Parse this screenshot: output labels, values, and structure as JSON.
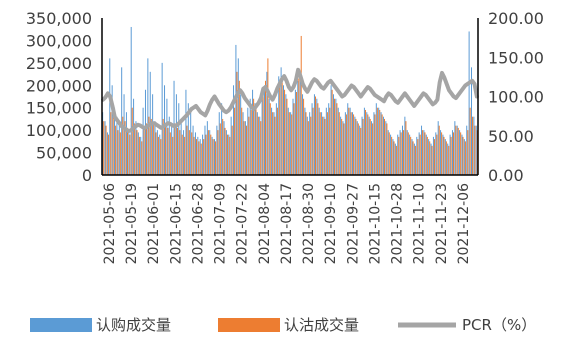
{
  "chart_data": {
    "type": "bar",
    "x_tick_labels": [
      "2021-05-06",
      "2021-05-19",
      "2021-06-01",
      "2021-06-15",
      "2021-06-28",
      "2021-07-09",
      "2021-07-22",
      "2021-08-04",
      "2021-08-17",
      "2021-08-30",
      "2021-09-10",
      "2021-09-27",
      "2021-10-15",
      "2021-10-28",
      "2021-11-10",
      "2021-11-23",
      "2021-12-06"
    ],
    "y_left": {
      "ticks": [
        "350,000",
        "300,000",
        "250,000",
        "200,000",
        "150,000",
        "100,000",
        "50,000",
        "0"
      ],
      "lim": [
        0,
        350000
      ]
    },
    "y_right": {
      "ticks": [
        "200.00",
        "150.00",
        "100.00",
        "50.00",
        "0.00"
      ],
      "lim": [
        0,
        200
      ]
    },
    "series": [
      {
        "name": "认购成交量",
        "kind": "bar",
        "axis": "left",
        "color": "#5B9BD5",
        "values": [
          140000,
          120000,
          95000,
          260000,
          200000,
          150000,
          130000,
          110000,
          240000,
          180000,
          140000,
          100000,
          330000,
          170000,
          120000,
          95000,
          85000,
          150000,
          190000,
          260000,
          230000,
          180000,
          120000,
          100000,
          90000,
          250000,
          200000,
          170000,
          130000,
          110000,
          210000,
          180000,
          160000,
          120000,
          100000,
          190000,
          160000,
          140000,
          110000,
          95000,
          85000,
          80000,
          90000,
          110000,
          120000,
          100000,
          85000,
          80000,
          110000,
          140000,
          160000,
          120000,
          100000,
          90000,
          130000,
          200000,
          290000,
          260000,
          180000,
          140000,
          120000,
          150000,
          170000,
          190000,
          160000,
          140000,
          130000,
          180000,
          200000,
          230000,
          170000,
          150000,
          140000,
          160000,
          220000,
          240000,
          200000,
          180000,
          150000,
          140000,
          170000,
          190000,
          210000,
          230000,
          180000,
          150000,
          130000,
          140000,
          160000,
          180000,
          170000,
          150000,
          140000,
          130000,
          150000,
          160000,
          200000,
          180000,
          170000,
          150000,
          130000,
          120000,
          140000,
          160000,
          150000,
          140000,
          130000,
          120000,
          110000,
          130000,
          150000,
          140000,
          130000,
          120000,
          140000,
          160000,
          150000,
          140000,
          130000,
          120000,
          100000,
          90000,
          80000,
          70000,
          90000,
          100000,
          110000,
          130000,
          100000,
          90000,
          80000,
          70000,
          85000,
          95000,
          110000,
          100000,
          90000,
          80000,
          70000,
          85000,
          95000,
          120000,
          100000,
          90000,
          80000,
          70000,
          90000,
          100000,
          120000,
          110000,
          100000,
          90000,
          80000,
          110000,
          320000,
          240000,
          130000,
          110000
        ],
        "pcr_values": []
      },
      {
        "name": "认沽成交量",
        "kind": "bar",
        "axis": "left",
        "color": "#ED7D31",
        "values": [
          120000,
          110000,
          90000,
          140000,
          130000,
          110000,
          100000,
          95000,
          130000,
          120000,
          105000,
          90000,
          150000,
          115000,
          100000,
          85000,
          75000,
          105000,
          115000,
          130000,
          125000,
          115000,
          95000,
          85000,
          80000,
          125000,
          115000,
          105000,
          95000,
          85000,
          115000,
          105000,
          100000,
          90000,
          85000,
          110000,
          100000,
          95000,
          85000,
          80000,
          75000,
          70000,
          80000,
          90000,
          100000,
          90000,
          80000,
          75000,
          100000,
          115000,
          125000,
          105000,
          90000,
          85000,
          110000,
          150000,
          230000,
          210000,
          150000,
          120000,
          110000,
          130000,
          145000,
          170000,
          150000,
          130000,
          120000,
          180000,
          210000,
          260000,
          160000,
          140000,
          130000,
          150000,
          200000,
          220000,
          190000,
          170000,
          140000,
          135000,
          160000,
          185000,
          215000,
          310000,
          170000,
          140000,
          120000,
          130000,
          150000,
          175000,
          160000,
          140000,
          130000,
          125000,
          140000,
          150000,
          190000,
          170000,
          160000,
          140000,
          125000,
          115000,
          135000,
          150000,
          140000,
          135000,
          125000,
          115000,
          105000,
          125000,
          145000,
          135000,
          125000,
          115000,
          135000,
          150000,
          145000,
          135000,
          125000,
          115000,
          95000,
          85000,
          75000,
          65000,
          85000,
          95000,
          100000,
          120000,
          95000,
          85000,
          75000,
          65000,
          80000,
          90000,
          100000,
          95000,
          85000,
          75000,
          65000,
          80000,
          90000,
          110000,
          95000,
          85000,
          75000,
          65000,
          85000,
          95000,
          110000,
          105000,
          95000,
          85000,
          75000,
          100000,
          150000,
          130000,
          110000,
          100000
        ]
      },
      {
        "name": "PCR（%）",
        "kind": "line",
        "axis": "right",
        "color": "#A5A5A5",
        "values": [
          96,
          99,
          104,
          100,
          88,
          74,
          70,
          66,
          62,
          60,
          58,
          56,
          57,
          60,
          62,
          64,
          63,
          61,
          60,
          62,
          64,
          66,
          66,
          64,
          62,
          60,
          62,
          64,
          66,
          65,
          63,
          62,
          64,
          67,
          70,
          73,
          76,
          80,
          84,
          86,
          88,
          84,
          80,
          78,
          76,
          82,
          90,
          96,
          100,
          95,
          90,
          86,
          82,
          80,
          82,
          86,
          92,
          98,
          104,
          108,
          104,
          98,
          94,
          90,
          86,
          84,
          88,
          92,
          98,
          110,
          112,
          106,
          100,
          96,
          102,
          110,
          116,
          122,
          126,
          120,
          112,
          108,
          112,
          120,
          134,
          126,
          116,
          110,
          106,
          112,
          118,
          122,
          120,
          116,
          112,
          110,
          114,
          118,
          120,
          116,
          112,
          108,
          104,
          100,
          102,
          106,
          110,
          114,
          112,
          108,
          104,
          100,
          104,
          108,
          112,
          110,
          106,
          102,
          100,
          98,
          96,
          94,
          100,
          104,
          102,
          98,
          94,
          92,
          96,
          100,
          104,
          100,
          96,
          92,
          88,
          92,
          96,
          100,
          104,
          102,
          98,
          94,
          90,
          92,
          96,
          118,
          130,
          124,
          116,
          108,
          104,
          100,
          98,
          102,
          106,
          110,
          114,
          116,
          118,
          120,
          116,
          100
        ]
      }
    ],
    "legend": "bottom",
    "grid": false
  }
}
